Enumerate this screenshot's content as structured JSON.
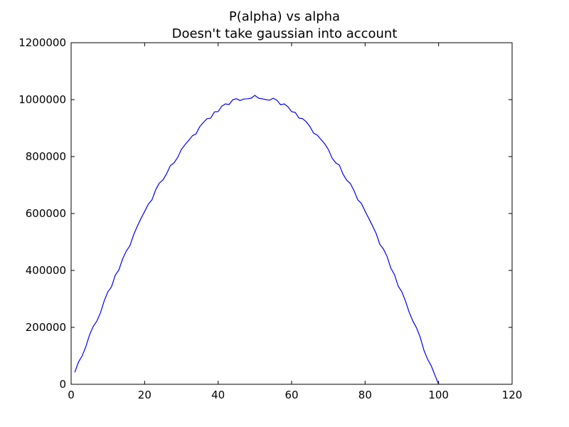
{
  "chart_data": {
    "type": "line",
    "title": "P(alpha) vs alpha",
    "subtitle": "Doesn't take gaussian into account",
    "xlabel": "",
    "ylabel": "",
    "xlim": [
      0,
      120
    ],
    "ylim": [
      0,
      1200000
    ],
    "xticks": [
      0,
      20,
      40,
      60,
      80,
      100,
      120
    ],
    "yticks": [
      0,
      200000,
      400000,
      600000,
      800000,
      1000000,
      1200000
    ],
    "xtick_labels": [
      "0",
      "20",
      "40",
      "60",
      "80",
      "100",
      "120"
    ],
    "ytick_labels": [
      "0",
      "200000",
      "400000",
      "600000",
      "800000",
      "1000000",
      "1200000"
    ],
    "grid": false,
    "series": [
      {
        "color": "#0000ff",
        "x": [
          1,
          2,
          3,
          4,
          5,
          6,
          7,
          8,
          9,
          10,
          11,
          12,
          13,
          14,
          15,
          16,
          17,
          18,
          19,
          20,
          21,
          22,
          23,
          24,
          25,
          26,
          27,
          28,
          29,
          30,
          31,
          32,
          33,
          34,
          35,
          36,
          37,
          38,
          39,
          40,
          41,
          42,
          43,
          44,
          45,
          46,
          47,
          48,
          49,
          50,
          51,
          52,
          53,
          54,
          55,
          56,
          57,
          58,
          59,
          60,
          61,
          62,
          63,
          64,
          65,
          66,
          67,
          68,
          69,
          70,
          71,
          72,
          73,
          74,
          75,
          76,
          77,
          78,
          79,
          80,
          81,
          82,
          83,
          84,
          85,
          86,
          87,
          88,
          89,
          90,
          91,
          92,
          93,
          94,
          95,
          96,
          97,
          98,
          99,
          100
        ],
        "y": [
          42000,
          78000,
          100000,
          132000,
          173000,
          203000,
          222000,
          252000,
          293000,
          325000,
          343000,
          383000,
          402000,
          440000,
          468000,
          487000,
          525000,
          555000,
          582000,
          607000,
          633000,
          648000,
          683000,
          707000,
          718000,
          740000,
          768000,
          778000,
          797000,
          825000,
          842000,
          857000,
          873000,
          880000,
          905000,
          920000,
          933000,
          935000,
          957000,
          958000,
          977000,
          985000,
          983000,
          1000000,
          1003000,
          997000,
          1002000,
          1003000,
          1005000,
          1015000,
          1005000,
          1003000,
          1000000,
          998000,
          1005000,
          998000,
          982000,
          985000,
          975000,
          958000,
          955000,
          935000,
          933000,
          922000,
          905000,
          882000,
          875000,
          860000,
          845000,
          825000,
          795000,
          778000,
          770000,
          738000,
          717000,
          705000,
          680000,
          648000,
          635000,
          608000,
          583000,
          557000,
          530000,
          492000,
          475000,
          448000,
          408000,
          385000,
          345000,
          325000,
          292000,
          253000,
          222000,
          198000,
          165000,
          120000,
          88000,
          65000,
          32000,
          0
        ]
      }
    ]
  }
}
